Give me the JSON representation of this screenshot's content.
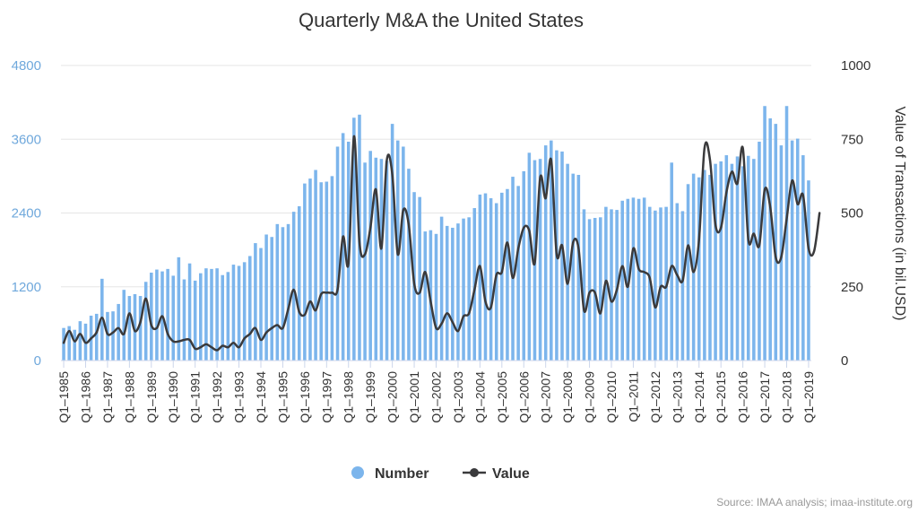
{
  "chart_data": {
    "type": "bar+line",
    "title": "Quarterly M&A the United States",
    "credit": "Source: IMAA analysis; imaa-institute.org",
    "y_left": {
      "ticks": [
        0,
        1200,
        2400,
        3600,
        4800
      ],
      "range": [
        0,
        4800
      ]
    },
    "y_right": {
      "ticks": [
        0,
        250,
        500,
        750,
        1000
      ],
      "range": [
        0,
        1000
      ],
      "title": "Value of Transactions (in bil.USD)"
    },
    "x_tick_labels": [
      "Q1–1985",
      "Q1–1986",
      "Q1–1987",
      "Q1–1988",
      "Q1–1989",
      "Q1–1990",
      "Q1–1991",
      "Q1–1992",
      "Q1–1993",
      "Q1–1994",
      "Q1–1995",
      "Q1–1996",
      "Q1–1997",
      "Q1–1998",
      "Q1–1999",
      "Q1–2000",
      "Q1–2001",
      "Q1–2002",
      "Q1–2003",
      "Q1–2004",
      "Q1–2005",
      "Q1–2006",
      "Q1–2007",
      "Q1–2008",
      "Q1–2009",
      "Q1–2010",
      "Q1–2011",
      "Q1–2012",
      "Q1–2013",
      "Q1–2014",
      "Q1–2015",
      "Q1–2016",
      "Q1–2017",
      "Q1–2018",
      "Q1–2019"
    ],
    "series": [
      {
        "name": "Number",
        "type": "bar",
        "color": "#7cb5ec",
        "values": [
          530,
          560,
          500,
          640,
          600,
          730,
          760,
          1330,
          790,
          800,
          920,
          1150,
          1050,
          1080,
          1050,
          1280,
          1430,
          1480,
          1450,
          1490,
          1380,
          1680,
          1320,
          1580,
          1300,
          1420,
          1500,
          1490,
          1500,
          1390,
          1440,
          1560,
          1540,
          1600,
          1700,
          1910,
          1830,
          2050,
          2010,
          2220,
          2170,
          2220,
          2420,
          2510,
          2880,
          2960,
          3100,
          2900,
          2910,
          3000,
          3480,
          3700,
          3560,
          3950,
          4000,
          3220,
          3410,
          3300,
          3280,
          3250,
          3850,
          3580,
          3480,
          3120,
          2740,
          2660,
          2100,
          2120,
          2060,
          2340,
          2190,
          2160,
          2230,
          2310,
          2330,
          2480,
          2700,
          2720,
          2640,
          2560,
          2730,
          2790,
          2990,
          2840,
          3080,
          3380,
          3260,
          3280,
          3500,
          3580,
          3420,
          3400,
          3200,
          3040,
          3020,
          2460,
          2300,
          2320,
          2330,
          2500,
          2460,
          2450,
          2600,
          2630,
          2650,
          2630,
          2650,
          2500,
          2440,
          2490,
          2500,
          3220,
          2560,
          2430,
          2870,
          3040,
          2980,
          3100,
          3020,
          3200,
          3240,
          3340,
          3200,
          3320,
          3160,
          3330,
          3280,
          3560,
          4140,
          3940,
          3850,
          3500,
          4140,
          3580,
          3610,
          3340,
          2930
        ]
      },
      {
        "name": "Value",
        "type": "line",
        "color": "#3a3a3c",
        "values": [
          60,
          100,
          65,
          90,
          60,
          75,
          95,
          145,
          90,
          95,
          110,
          90,
          160,
          100,
          130,
          210,
          120,
          110,
          150,
          90,
          65,
          65,
          70,
          70,
          40,
          45,
          55,
          45,
          35,
          50,
          45,
          60,
          45,
          75,
          90,
          110,
          70,
          95,
          110,
          120,
          110,
          175,
          240,
          165,
          155,
          200,
          170,
          225,
          230,
          230,
          240,
          420,
          330,
          760,
          400,
          360,
          450,
          580,
          380,
          680,
          630,
          360,
          510,
          460,
          260,
          230,
          300,
          200,
          110,
          125,
          160,
          130,
          100,
          150,
          160,
          240,
          320,
          200,
          180,
          290,
          300,
          400,
          280,
          380,
          450,
          440,
          330,
          620,
          550,
          680,
          360,
          390,
          260,
          400,
          380,
          170,
          230,
          230,
          160,
          270,
          200,
          240,
          320,
          250,
          380,
          310,
          300,
          280,
          180,
          250,
          250,
          320,
          290,
          270,
          390,
          300,
          410,
          720,
          680,
          460,
          450,
          570,
          640,
          600,
          720,
          410,
          430,
          390,
          580,
          520,
          350,
          350,
          480,
          610,
          530,
          560,
          380,
          370,
          500
        ]
      }
    ]
  }
}
